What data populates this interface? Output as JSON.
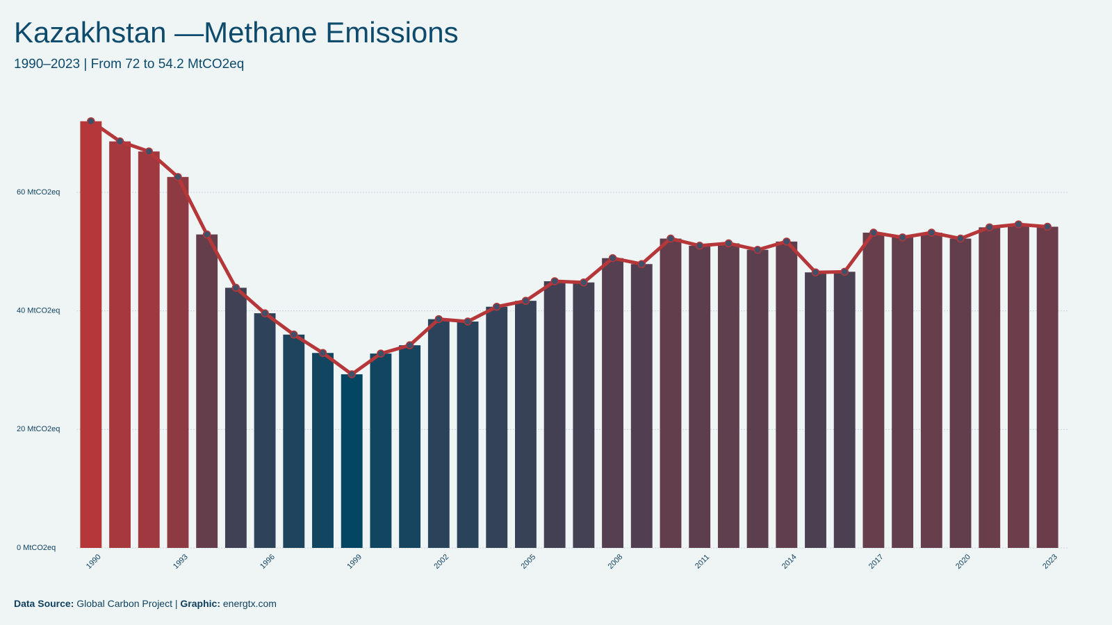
{
  "chart_data": {
    "type": "bar_line",
    "title": "Kazakhstan —Methane Emissions",
    "subtitle": "1990–2023 | From 72 to 54.2 MtCO2eq",
    "categories": [
      "1990",
      null,
      null,
      "1993",
      null,
      null,
      "1996",
      null,
      null,
      "1999",
      null,
      null,
      "2002",
      null,
      null,
      "2005",
      null,
      null,
      "2008",
      null,
      null,
      "2011",
      null,
      null,
      "2014",
      null,
      null,
      "2017",
      null,
      null,
      "2020",
      null,
      null,
      "2023"
    ],
    "values": [
      72,
      68.6,
      66.9,
      62.6,
      52.9,
      43.9,
      39.6,
      36.0,
      32.9,
      29.3,
      32.8,
      34.2,
      38.6,
      38.2,
      40.7,
      41.7,
      45.0,
      44.8,
      48.9,
      47.9,
      52.2,
      51.0,
      51.4,
      50.3,
      51.7,
      46.5,
      46.6,
      53.2,
      52.4,
      53.2,
      52.2,
      54.1,
      54.6,
      54.2
    ],
    "color_high": "#b5373a",
    "color_low": "#034663",
    "line_color": "#b5373a",
    "marker_color": "#3f5068",
    "ylim": [
      0,
      75
    ],
    "yticks": [
      {
        "value": 0,
        "label": "0 MtCO2eq"
      },
      {
        "value": 20,
        "label": "20 MtCO2eq"
      },
      {
        "value": 40,
        "label": "40 MtCO2eq"
      },
      {
        "value": 60,
        "label": "60 MtCO2eq"
      }
    ],
    "grid": true,
    "footer": {
      "source_label": "Data Source:",
      "source": "Global Carbon Project",
      "separator": "|",
      "graphic_label": "Graphic:",
      "graphic": "energtx.com"
    }
  }
}
